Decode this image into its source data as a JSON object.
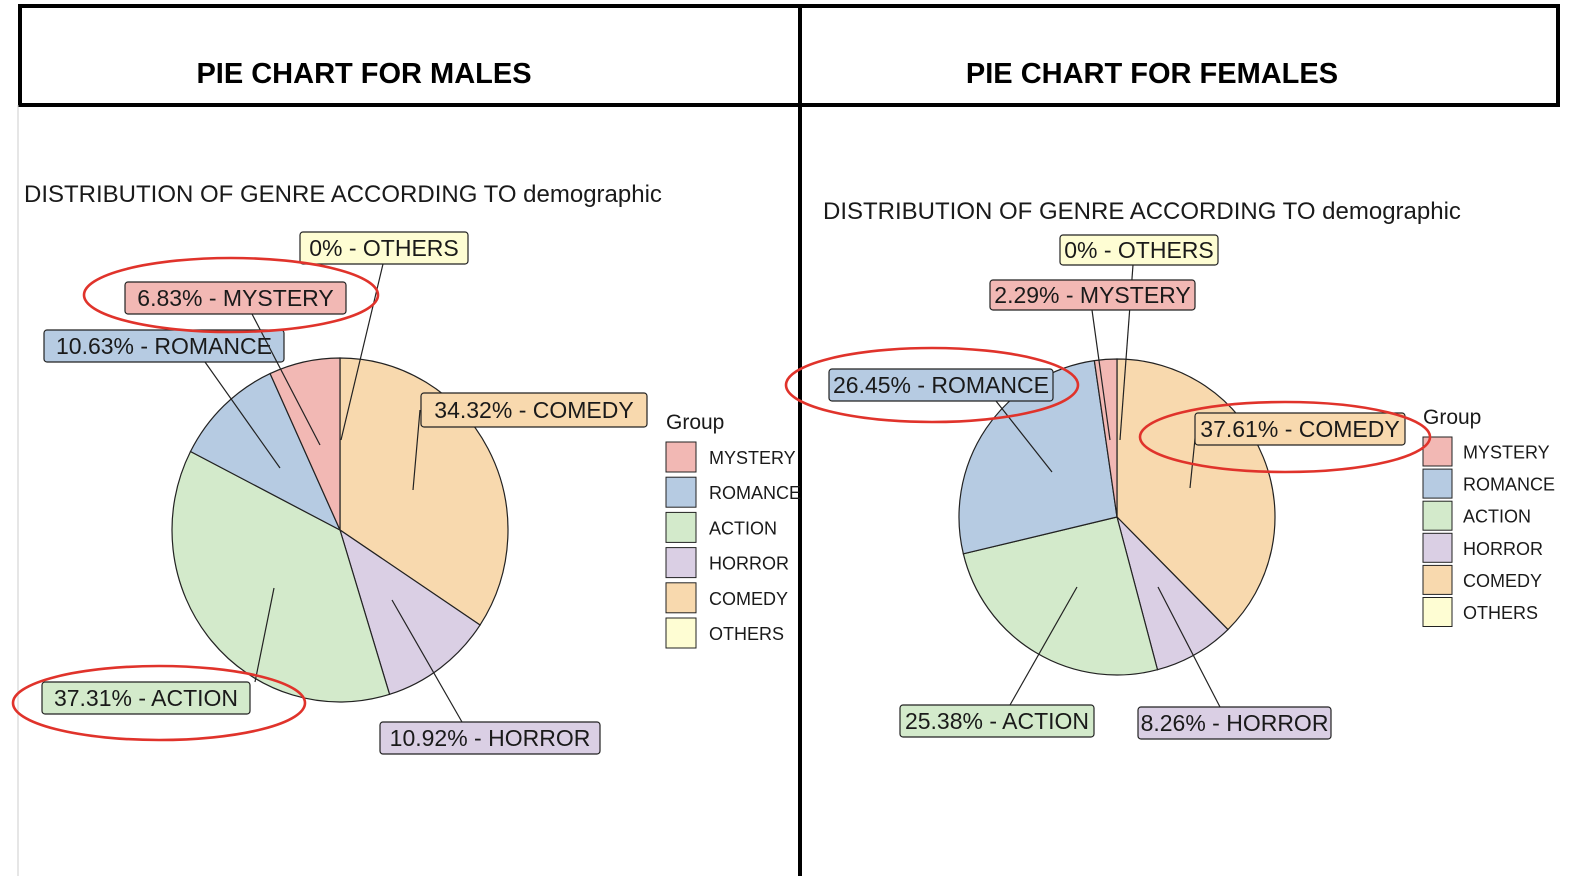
{
  "panels": [
    {
      "header": "PIE CHART FOR MALES"
    },
    {
      "header": "PIE CHART FOR FEMALES"
    }
  ],
  "colors": {
    "MYSTERY": "#F2B8B4",
    "ROMANCE": "#B6CBE2",
    "ACTION": "#D3EACB",
    "HORROR": "#DACFE4",
    "COMEDY": "#F8D9AE",
    "OTHERS": "#FEFDD3",
    "highlight": "#E0332B"
  },
  "chart_data": [
    {
      "type": "pie",
      "title": "DISTRIBUTION OF GENRE ACCORDING TO demographic",
      "legend_title": "Group",
      "legend_position": "right",
      "slices": [
        {
          "group": "OTHERS",
          "value": 0,
          "label": "0% - OTHERS",
          "highlighted": false
        },
        {
          "group": "COMEDY",
          "value": 34.32,
          "label": "34.32% - COMEDY",
          "highlighted": false
        },
        {
          "group": "HORROR",
          "value": 10.92,
          "label": "10.92% - HORROR",
          "highlighted": false
        },
        {
          "group": "ACTION",
          "value": 37.31,
          "label": "37.31% - ACTION",
          "highlighted": true
        },
        {
          "group": "ROMANCE",
          "value": 10.63,
          "label": "10.63% - ROMANCE",
          "highlighted": false
        },
        {
          "group": "MYSTERY",
          "value": 6.83,
          "label": "6.83% - MYSTERY",
          "highlighted": true
        }
      ],
      "legend": [
        "MYSTERY",
        "ROMANCE",
        "ACTION",
        "HORROR",
        "COMEDY",
        "OTHERS"
      ]
    },
    {
      "type": "pie",
      "title": "DISTRIBUTION OF GENRE ACCORDING TO demographic",
      "legend_title": "Group",
      "legend_position": "right",
      "slices": [
        {
          "group": "OTHERS",
          "value": 0,
          "label": "0% - OTHERS",
          "highlighted": false
        },
        {
          "group": "COMEDY",
          "value": 37.61,
          "label": "37.61% - COMEDY",
          "highlighted": true
        },
        {
          "group": "HORROR",
          "value": 8.26,
          "label": "8.26% - HORROR",
          "highlighted": false
        },
        {
          "group": "ACTION",
          "value": 25.38,
          "label": "25.38% - ACTION",
          "highlighted": false
        },
        {
          "group": "ROMANCE",
          "value": 26.45,
          "label": "26.45% - ROMANCE",
          "highlighted": true
        },
        {
          "group": "MYSTERY",
          "value": 2.29,
          "label": "2.29% - MYSTERY",
          "highlighted": false
        }
      ],
      "legend": [
        "MYSTERY",
        "ROMANCE",
        "ACTION",
        "HORROR",
        "COMEDY",
        "OTHERS"
      ]
    }
  ]
}
